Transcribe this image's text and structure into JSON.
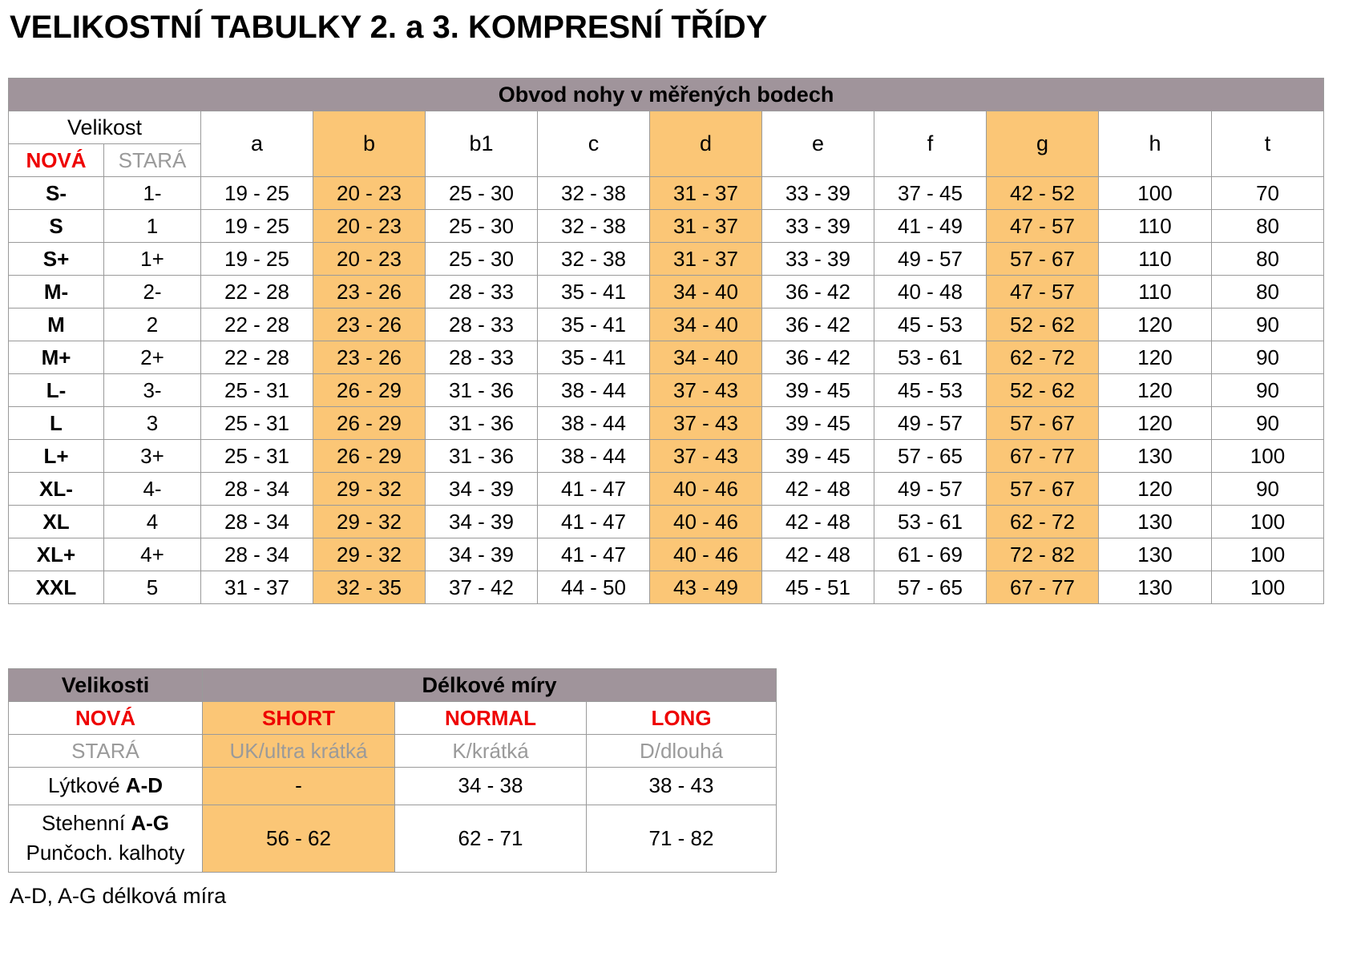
{
  "title": "VELIKOSTNÍ TABULKY 2. a 3. KOMPRESNÍ TŘÍDY",
  "colors": {
    "banner_bg": "#A0949B",
    "highlight_bg": "#FBC676",
    "accent_red": "#EE0000",
    "muted_gray": "#9A9A9A"
  },
  "size_table": {
    "banner": "Obvod nohy v měřených bodech",
    "velikost_label": "Velikost",
    "nova_label": "NOVÁ",
    "stara_label": "STARÁ",
    "measure_columns": [
      "a",
      "b",
      "b1",
      "c",
      "d",
      "e",
      "f",
      "g",
      "h",
      "t"
    ],
    "highlight_indices": [
      1,
      4,
      7
    ],
    "rows": [
      {
        "nova": "S-",
        "stara": "1-",
        "values": [
          "19 - 25",
          "20 - 23",
          "25 - 30",
          "32 - 38",
          "31 - 37",
          "33 - 39",
          "37 - 45",
          "42 - 52",
          "100",
          "70"
        ]
      },
      {
        "nova": "S",
        "stara": "1",
        "values": [
          "19 - 25",
          "20 - 23",
          "25 - 30",
          "32 - 38",
          "31 - 37",
          "33 - 39",
          "41 - 49",
          "47 - 57",
          "110",
          "80"
        ]
      },
      {
        "nova": "S+",
        "stara": "1+",
        "values": [
          "19 - 25",
          "20 - 23",
          "25 - 30",
          "32 - 38",
          "31 - 37",
          "33 - 39",
          "49 - 57",
          "57 - 67",
          "110",
          "80"
        ]
      },
      {
        "nova": "M-",
        "stara": "2-",
        "values": [
          "22 - 28",
          "23 - 26",
          "28 - 33",
          "35 - 41",
          "34 - 40",
          "36 - 42",
          "40 - 48",
          "47 - 57",
          "110",
          "80"
        ]
      },
      {
        "nova": "M",
        "stara": "2",
        "values": [
          "22 - 28",
          "23 - 26",
          "28 - 33",
          "35 - 41",
          "34 - 40",
          "36 - 42",
          "45 - 53",
          "52 - 62",
          "120",
          "90"
        ]
      },
      {
        "nova": "M+",
        "stara": "2+",
        "values": [
          "22 - 28",
          "23 - 26",
          "28 - 33",
          "35 - 41",
          "34 - 40",
          "36 - 42",
          "53 - 61",
          "62 - 72",
          "120",
          "90"
        ]
      },
      {
        "nova": "L-",
        "stara": "3-",
        "values": [
          "25 - 31",
          "26 - 29",
          "31 - 36",
          "38 - 44",
          "37 - 43",
          "39 - 45",
          "45 - 53",
          "52 - 62",
          "120",
          "90"
        ]
      },
      {
        "nova": "L",
        "stara": "3",
        "values": [
          "25 - 31",
          "26 - 29",
          "31 - 36",
          "38 - 44",
          "37 - 43",
          "39 - 45",
          "49 - 57",
          "57 - 67",
          "120",
          "90"
        ]
      },
      {
        "nova": "L+",
        "stara": "3+",
        "values": [
          "25 - 31",
          "26 - 29",
          "31 - 36",
          "38 - 44",
          "37 - 43",
          "39 - 45",
          "57 - 65",
          "67 - 77",
          "130",
          "100"
        ]
      },
      {
        "nova": "XL-",
        "stara": "4-",
        "values": [
          "28 - 34",
          "29 - 32",
          "34 - 39",
          "41 - 47",
          "40 - 46",
          "42 - 48",
          "49 - 57",
          "57 - 67",
          "120",
          "90"
        ]
      },
      {
        "nova": "XL",
        "stara": "4",
        "values": [
          "28 - 34",
          "29 - 32",
          "34 - 39",
          "41 - 47",
          "40 - 46",
          "42 - 48",
          "53 - 61",
          "62 - 72",
          "130",
          "100"
        ]
      },
      {
        "nova": "XL+",
        "stara": "4+",
        "values": [
          "28 - 34",
          "29 - 32",
          "34 - 39",
          "41 - 47",
          "40 - 46",
          "42 - 48",
          "61 - 69",
          "72 - 82",
          "130",
          "100"
        ]
      },
      {
        "nova": "XXL",
        "stara": "5",
        "values": [
          "31 - 37",
          "32 - 35",
          "37 - 42",
          "44 - 50",
          "43 - 49",
          "45 - 51",
          "57 - 65",
          "67 - 77",
          "130",
          "100"
        ]
      }
    ]
  },
  "length_table": {
    "velikosti_label": "Velikosti",
    "delkove_label": "Délkové míry",
    "nova_row": [
      "NOVÁ",
      "SHORT",
      "NORMAL",
      "LONG"
    ],
    "stara_row": [
      "STARÁ",
      "UK/ultra krátká",
      "K/krátká",
      "D/dlouhá"
    ],
    "rows": [
      {
        "label_prefix": "Lýtkové ",
        "label_bold": "A-D",
        "label_line2": "",
        "values": [
          "-",
          "34 - 38",
          "38 - 43"
        ]
      },
      {
        "label_prefix": "Stehenní ",
        "label_bold": "A-G",
        "label_line2": "Punčoch. kalhoty",
        "values": [
          "56 - 62",
          "62 - 71",
          "71 - 82"
        ]
      }
    ]
  },
  "footnote": "A-D, A-G délková míra"
}
